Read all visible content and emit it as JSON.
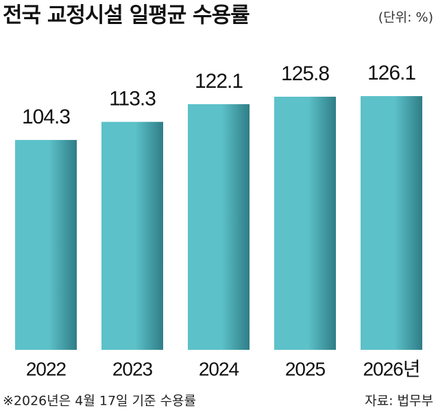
{
  "chart_data": {
    "type": "bar",
    "title": "전국 교정시설 일평균 수용률",
    "unit": "(단위: %)",
    "categories": [
      "2022",
      "2023",
      "2024",
      "2025",
      "2026년"
    ],
    "values": [
      104.3,
      113.3,
      122.1,
      125.8,
      126.1
    ],
    "color": "#5cc1c9",
    "ylim": [
      0,
      135
    ],
    "footnote": "※2026년은 4월 17일 기준 수용률",
    "source": "자료: 법무부"
  }
}
